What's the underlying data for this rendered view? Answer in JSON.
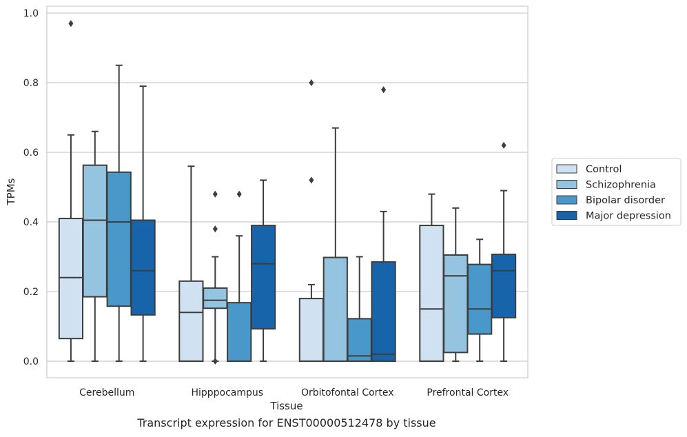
{
  "caption": "Transcript expression for ENST00000512478 by tissue",
  "chart_data": {
    "type": "boxplot",
    "xlabel": "Tissue",
    "ylabel": "TPMs",
    "ylim": [
      -0.045,
      1.02
    ],
    "yticks": [
      0.0,
      0.2,
      0.4,
      0.6,
      0.8,
      1.0
    ],
    "ytick_labels": [
      "0.0",
      "0.2",
      "0.4",
      "0.6",
      "0.8",
      "1.0"
    ],
    "categories": [
      "Cerebellum",
      "Hipppocampus",
      "Orbitofontal Cortex",
      "Prefrontal Cortex"
    ],
    "grid": "horizontal",
    "legend_position": "right",
    "series": [
      {
        "name": "Control",
        "color": "#d0e1f2",
        "boxes": [
          {
            "whislo": 0.0,
            "q1": 0.065,
            "med": 0.24,
            "q3": 0.41,
            "whishi": 0.65,
            "fliers": [
              0.97
            ]
          },
          {
            "whislo": 0.0,
            "q1": 0.0,
            "med": 0.14,
            "q3": 0.23,
            "whishi": 0.56,
            "fliers": []
          },
          {
            "whislo": 0.0,
            "q1": 0.0,
            "med": 0.0,
            "q3": 0.18,
            "whishi": 0.22,
            "fliers": [
              0.52,
              0.8
            ]
          },
          {
            "whislo": 0.0,
            "q1": 0.0,
            "med": 0.15,
            "q3": 0.39,
            "whishi": 0.48,
            "fliers": []
          }
        ]
      },
      {
        "name": "Schizophrenia",
        "color": "#94c4df",
        "boxes": [
          {
            "whislo": 0.0,
            "q1": 0.185,
            "med": 0.405,
            "q3": 0.563,
            "whishi": 0.66,
            "fliers": []
          },
          {
            "whislo": 0.0,
            "q1": 0.152,
            "med": 0.175,
            "q3": 0.21,
            "whishi": 0.3,
            "fliers": [
              0.0,
              0.38,
              0.48
            ]
          },
          {
            "whislo": 0.0,
            "q1": 0.0,
            "med": 0.0,
            "q3": 0.298,
            "whishi": 0.67,
            "fliers": []
          },
          {
            "whislo": 0.0,
            "q1": 0.025,
            "med": 0.245,
            "q3": 0.305,
            "whishi": 0.44,
            "fliers": []
          }
        ]
      },
      {
        "name": "Bipolar disorder",
        "color": "#4a98c9",
        "boxes": [
          {
            "whislo": 0.0,
            "q1": 0.158,
            "med": 0.4,
            "q3": 0.543,
            "whishi": 0.85,
            "fliers": []
          },
          {
            "whislo": 0.0,
            "q1": 0.0,
            "med": 0.0,
            "q3": 0.168,
            "whishi": 0.36,
            "fliers": [
              0.48
            ]
          },
          {
            "whislo": 0.0,
            "q1": 0.0,
            "med": 0.015,
            "q3": 0.122,
            "whishi": 0.3,
            "fliers": []
          },
          {
            "whislo": 0.0,
            "q1": 0.078,
            "med": 0.15,
            "q3": 0.278,
            "whishi": 0.35,
            "fliers": []
          }
        ]
      },
      {
        "name": "Major depression",
        "color": "#1764ab",
        "boxes": [
          {
            "whislo": 0.0,
            "q1": 0.133,
            "med": 0.26,
            "q3": 0.405,
            "whishi": 0.79,
            "fliers": []
          },
          {
            "whislo": 0.0,
            "q1": 0.093,
            "med": 0.28,
            "q3": 0.39,
            "whishi": 0.52,
            "fliers": []
          },
          {
            "whislo": 0.0,
            "q1": 0.0,
            "med": 0.02,
            "q3": 0.285,
            "whishi": 0.43,
            "fliers": [
              0.78
            ]
          },
          {
            "whislo": 0.0,
            "q1": 0.125,
            "med": 0.26,
            "q3": 0.307,
            "whishi": 0.49,
            "fliers": [
              0.62
            ]
          }
        ]
      }
    ]
  }
}
